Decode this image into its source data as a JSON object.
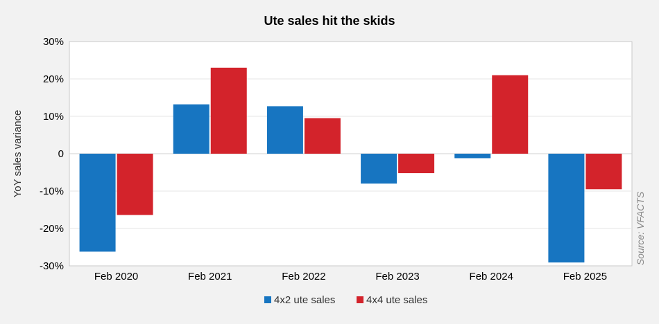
{
  "chart_data": {
    "type": "bar",
    "title": "Ute sales hit the skids",
    "xlabel": "",
    "ylabel": "YoY sales variance",
    "categories": [
      "Feb 2020",
      "Feb 2021",
      "Feb 2022",
      "Feb 2023",
      "Feb 2024",
      "Feb 2025"
    ],
    "series": [
      {
        "name": "4x2 ute sales",
        "color": "#1775c1",
        "values": [
          -26.2,
          13.2,
          12.7,
          -8.0,
          -1.2,
          -29.1
        ]
      },
      {
        "name": "4x4 ute sales",
        "color": "#d3232b",
        "values": [
          -16.4,
          23.0,
          9.5,
          -5.2,
          21.0,
          -9.5
        ]
      }
    ],
    "ylim": [
      -30,
      30
    ],
    "yticks": [
      {
        "value": 30,
        "label": "30%"
      },
      {
        "value": 20,
        "label": "20%"
      },
      {
        "value": 10,
        "label": "10%"
      },
      {
        "value": 0,
        "label": "0"
      },
      {
        "value": -10,
        "label": "-10%"
      },
      {
        "value": -20,
        "label": "-20%"
      },
      {
        "value": -30,
        "label": "-30%"
      }
    ],
    "grid": true,
    "legend_position": "bottom",
    "source": "Source: VFACTS"
  }
}
